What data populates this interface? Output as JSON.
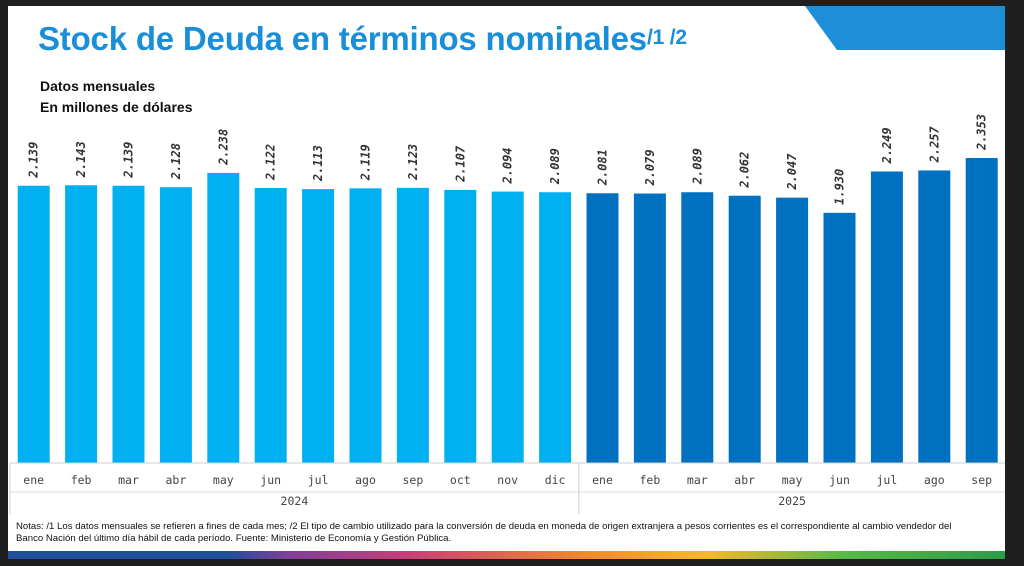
{
  "header": {
    "title": "Stock de Deuda en términos nominales",
    "title_sup": "/1 /2",
    "subtitle_1": "Datos mensuales",
    "subtitle_2": "En millones de dólares"
  },
  "notes": "Notas: /1 Los datos mensuales se refieren a fines de cada mes; /2 El tipo de cambio utilizado para la conversión de deuda en moneda de origen extranjera a pesos corrientes es el correspondiente al cambio vendedor del Banco Nación del último día hábil de cada período. Fuente: Ministerio de Economía y Gestión Pública.",
  "colors": {
    "accent": "#1a8fd9",
    "bar_2024": "#00b0f0",
    "bar_2025": "#0070c0"
  },
  "chart_data": {
    "type": "bar",
    "title": "Stock de Deuda en términos nominales",
    "ylabel": "",
    "xlabel": "",
    "ylim": [
      0,
      2600
    ],
    "grid": false,
    "groups": [
      {
        "label": "2024",
        "color": "#00b0f0",
        "categories": [
          "ene",
          "feb",
          "mar",
          "abr",
          "may",
          "jun",
          "jul",
          "ago",
          "sep",
          "oct",
          "nov",
          "dic"
        ],
        "values": [
          2139,
          2143,
          2139,
          2128,
          2238,
          2122,
          2113,
          2119,
          2123,
          2107,
          2094,
          2089
        ],
        "value_labels": [
          "2.139",
          "2.143",
          "2.139",
          "2.128",
          "2.238",
          "2.122",
          "2.113",
          "2.119",
          "2.123",
          "2.107",
          "2.094",
          "2.089"
        ]
      },
      {
        "label": "2025",
        "color": "#0070c0",
        "categories": [
          "ene",
          "feb",
          "mar",
          "abr",
          "may",
          "jun",
          "jul",
          "ago",
          "sep"
        ],
        "values": [
          2081,
          2079,
          2089,
          2062,
          2047,
          1930,
          2249,
          2257,
          2353
        ],
        "value_labels": [
          "2.081",
          "2.079",
          "2.089",
          "2.062",
          "2.047",
          "1.930",
          "2.249",
          "2.257",
          "2.353"
        ]
      }
    ]
  }
}
